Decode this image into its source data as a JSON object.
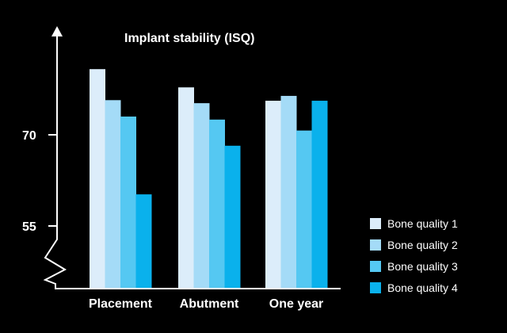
{
  "chart_data": {
    "type": "bar",
    "title": "Implant stability (ISQ)",
    "xlabel": "",
    "ylabel": "Implant stability (ISQ)",
    "categories": [
      "Placement",
      "Abutment",
      "One year"
    ],
    "series": [
      {
        "name": "Bone quality 1",
        "color": "#dcedfa",
        "values": [
          80.8,
          77.8,
          75.6
        ]
      },
      {
        "name": "Bone quality 2",
        "color": "#a4dbf7",
        "values": [
          75.7,
          75.2,
          76.4
        ]
      },
      {
        "name": "Bone quality 3",
        "color": "#55c8f2",
        "values": [
          73.0,
          72.5,
          70.7
        ]
      },
      {
        "name": "Bone quality 4",
        "color": "#0ab1ec",
        "values": [
          60.2,
          68.2,
          75.6
        ]
      }
    ],
    "y_ticks": [
      55,
      70
    ],
    "ylim": [
      45,
      88
    ],
    "axis_break": true,
    "grid": false,
    "legend_position": "right-bottom"
  },
  "header": {
    "title": "Implant stability (ISQ)"
  },
  "axis": {
    "tick_70": "70",
    "tick_55": "55"
  },
  "legend": {
    "items": [
      {
        "label": "Bone quality 1",
        "color": "#dcedfa"
      },
      {
        "label": "Bone quality 2",
        "color": "#a4dbf7"
      },
      {
        "label": "Bone quality 3",
        "color": "#55c8f2"
      },
      {
        "label": "Bone quality 4",
        "color": "#0ab1ec"
      }
    ]
  }
}
